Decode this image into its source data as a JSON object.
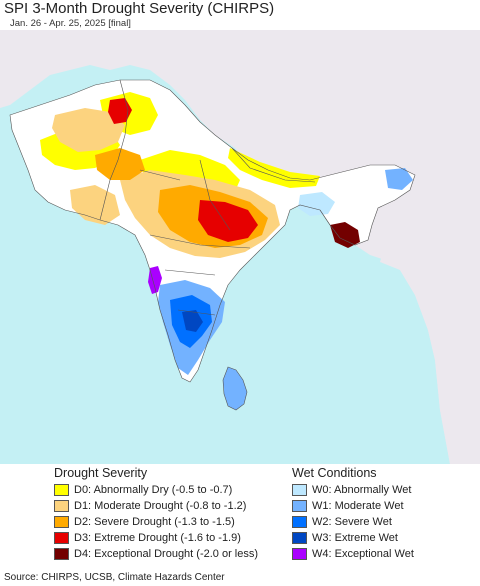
{
  "header": {
    "title": "SPI 3-Month Drought Severity (CHIRPS)",
    "subtitle": "Jan. 26 - Apr. 25, 2025 [final]"
  },
  "map": {
    "colors": {
      "ocean": "#c4f0f4",
      "land_outside": "#ece8ee",
      "land_normal": "#ffffff",
      "border": "#555555"
    }
  },
  "legend": {
    "drought": {
      "heading": "Drought Severity",
      "items": [
        {
          "label": "D0: Abnormally Dry (-0.5 to -0.7)",
          "color": "#ffff00"
        },
        {
          "label": "D1: Moderate Drought (-0.8 to -1.2)",
          "color": "#fcd37f"
        },
        {
          "label": "D2: Severe Drought (-1.3 to -1.5)",
          "color": "#ffaa00"
        },
        {
          "label": "D3: Extreme Drought (-1.6 to -1.9)",
          "color": "#e60000"
        },
        {
          "label": "D4: Exceptional Drought (-2.0 or less)",
          "color": "#730000"
        }
      ]
    },
    "wet": {
      "heading": "Wet Conditions",
      "items": [
        {
          "label": "W0: Abnormally Wet",
          "color": "#bee8ff"
        },
        {
          "label": "W1: Moderate Wet",
          "color": "#73b2ff"
        },
        {
          "label": "W2: Severe Wet",
          "color": "#0070ff"
        },
        {
          "label": "W3: Extreme Wet",
          "color": "#0047c2"
        },
        {
          "label": "W4: Exceptional Wet",
          "color": "#aa00ff"
        }
      ]
    }
  },
  "footer": {
    "source": "Source: CHIRPS, UCSB, Climate Hazards Center"
  }
}
